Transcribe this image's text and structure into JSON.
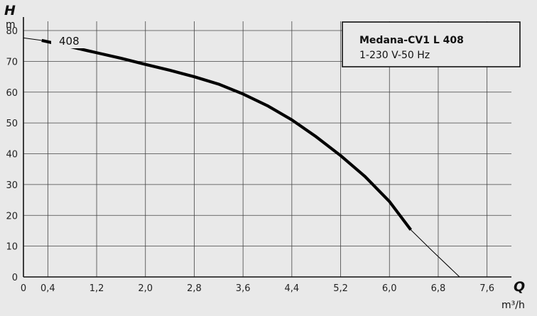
{
  "chart_data": {
    "type": "line",
    "x_axis": {
      "symbol": "Q",
      "unit": "m³/h",
      "ticks": [
        0,
        0.4,
        1.2,
        2.0,
        2.8,
        3.6,
        4.4,
        5.2,
        6.0,
        6.8,
        7.6
      ],
      "tick_labels": [
        "0",
        "0,4",
        "1,2",
        "2,0",
        "2,8",
        "3,6",
        "4,4",
        "5,2",
        "6,0",
        "6,8",
        "7,6"
      ],
      "range": [
        0,
        8
      ]
    },
    "y_axis": {
      "symbol": "H",
      "unit": "m",
      "ticks": [
        0,
        10,
        20,
        30,
        40,
        50,
        60,
        70,
        80
      ],
      "tick_labels": [
        "0",
        "10",
        "20",
        "30",
        "40",
        "50",
        "60",
        "70",
        "80"
      ],
      "range": [
        0,
        83
      ]
    },
    "grid": true,
    "legend": {
      "title": "Medana-CV1 L 408",
      "subtitle": "1-230 V-50 Hz",
      "placement": "top-right"
    },
    "series": [
      {
        "name": "408",
        "operating_range_points": [
          [
            0.3,
            76.8
          ],
          [
            0.8,
            74.6
          ],
          [
            1.2,
            72.8
          ],
          [
            1.6,
            71.0
          ],
          [
            2.0,
            69.0
          ],
          [
            2.4,
            67.1
          ],
          [
            2.8,
            65.0
          ],
          [
            3.2,
            62.6
          ],
          [
            3.6,
            59.4
          ],
          [
            4.0,
            55.6
          ],
          [
            4.4,
            51.0
          ],
          [
            4.8,
            45.5
          ],
          [
            5.2,
            39.4
          ],
          [
            5.6,
            32.6
          ],
          [
            6.0,
            24.5
          ],
          [
            6.35,
            15.3
          ]
        ],
        "extrapolated_points": [
          [
            0.0,
            77.6
          ],
          [
            0.3,
            76.8
          ]
        ],
        "extrapolated_tail_points": [
          [
            6.35,
            15.3
          ],
          [
            6.7,
            8.5
          ],
          [
            7.15,
            0.0
          ]
        ]
      }
    ]
  },
  "colors": {
    "background": "#e9e9e9",
    "grid": "#444444",
    "curve": "#000000"
  }
}
